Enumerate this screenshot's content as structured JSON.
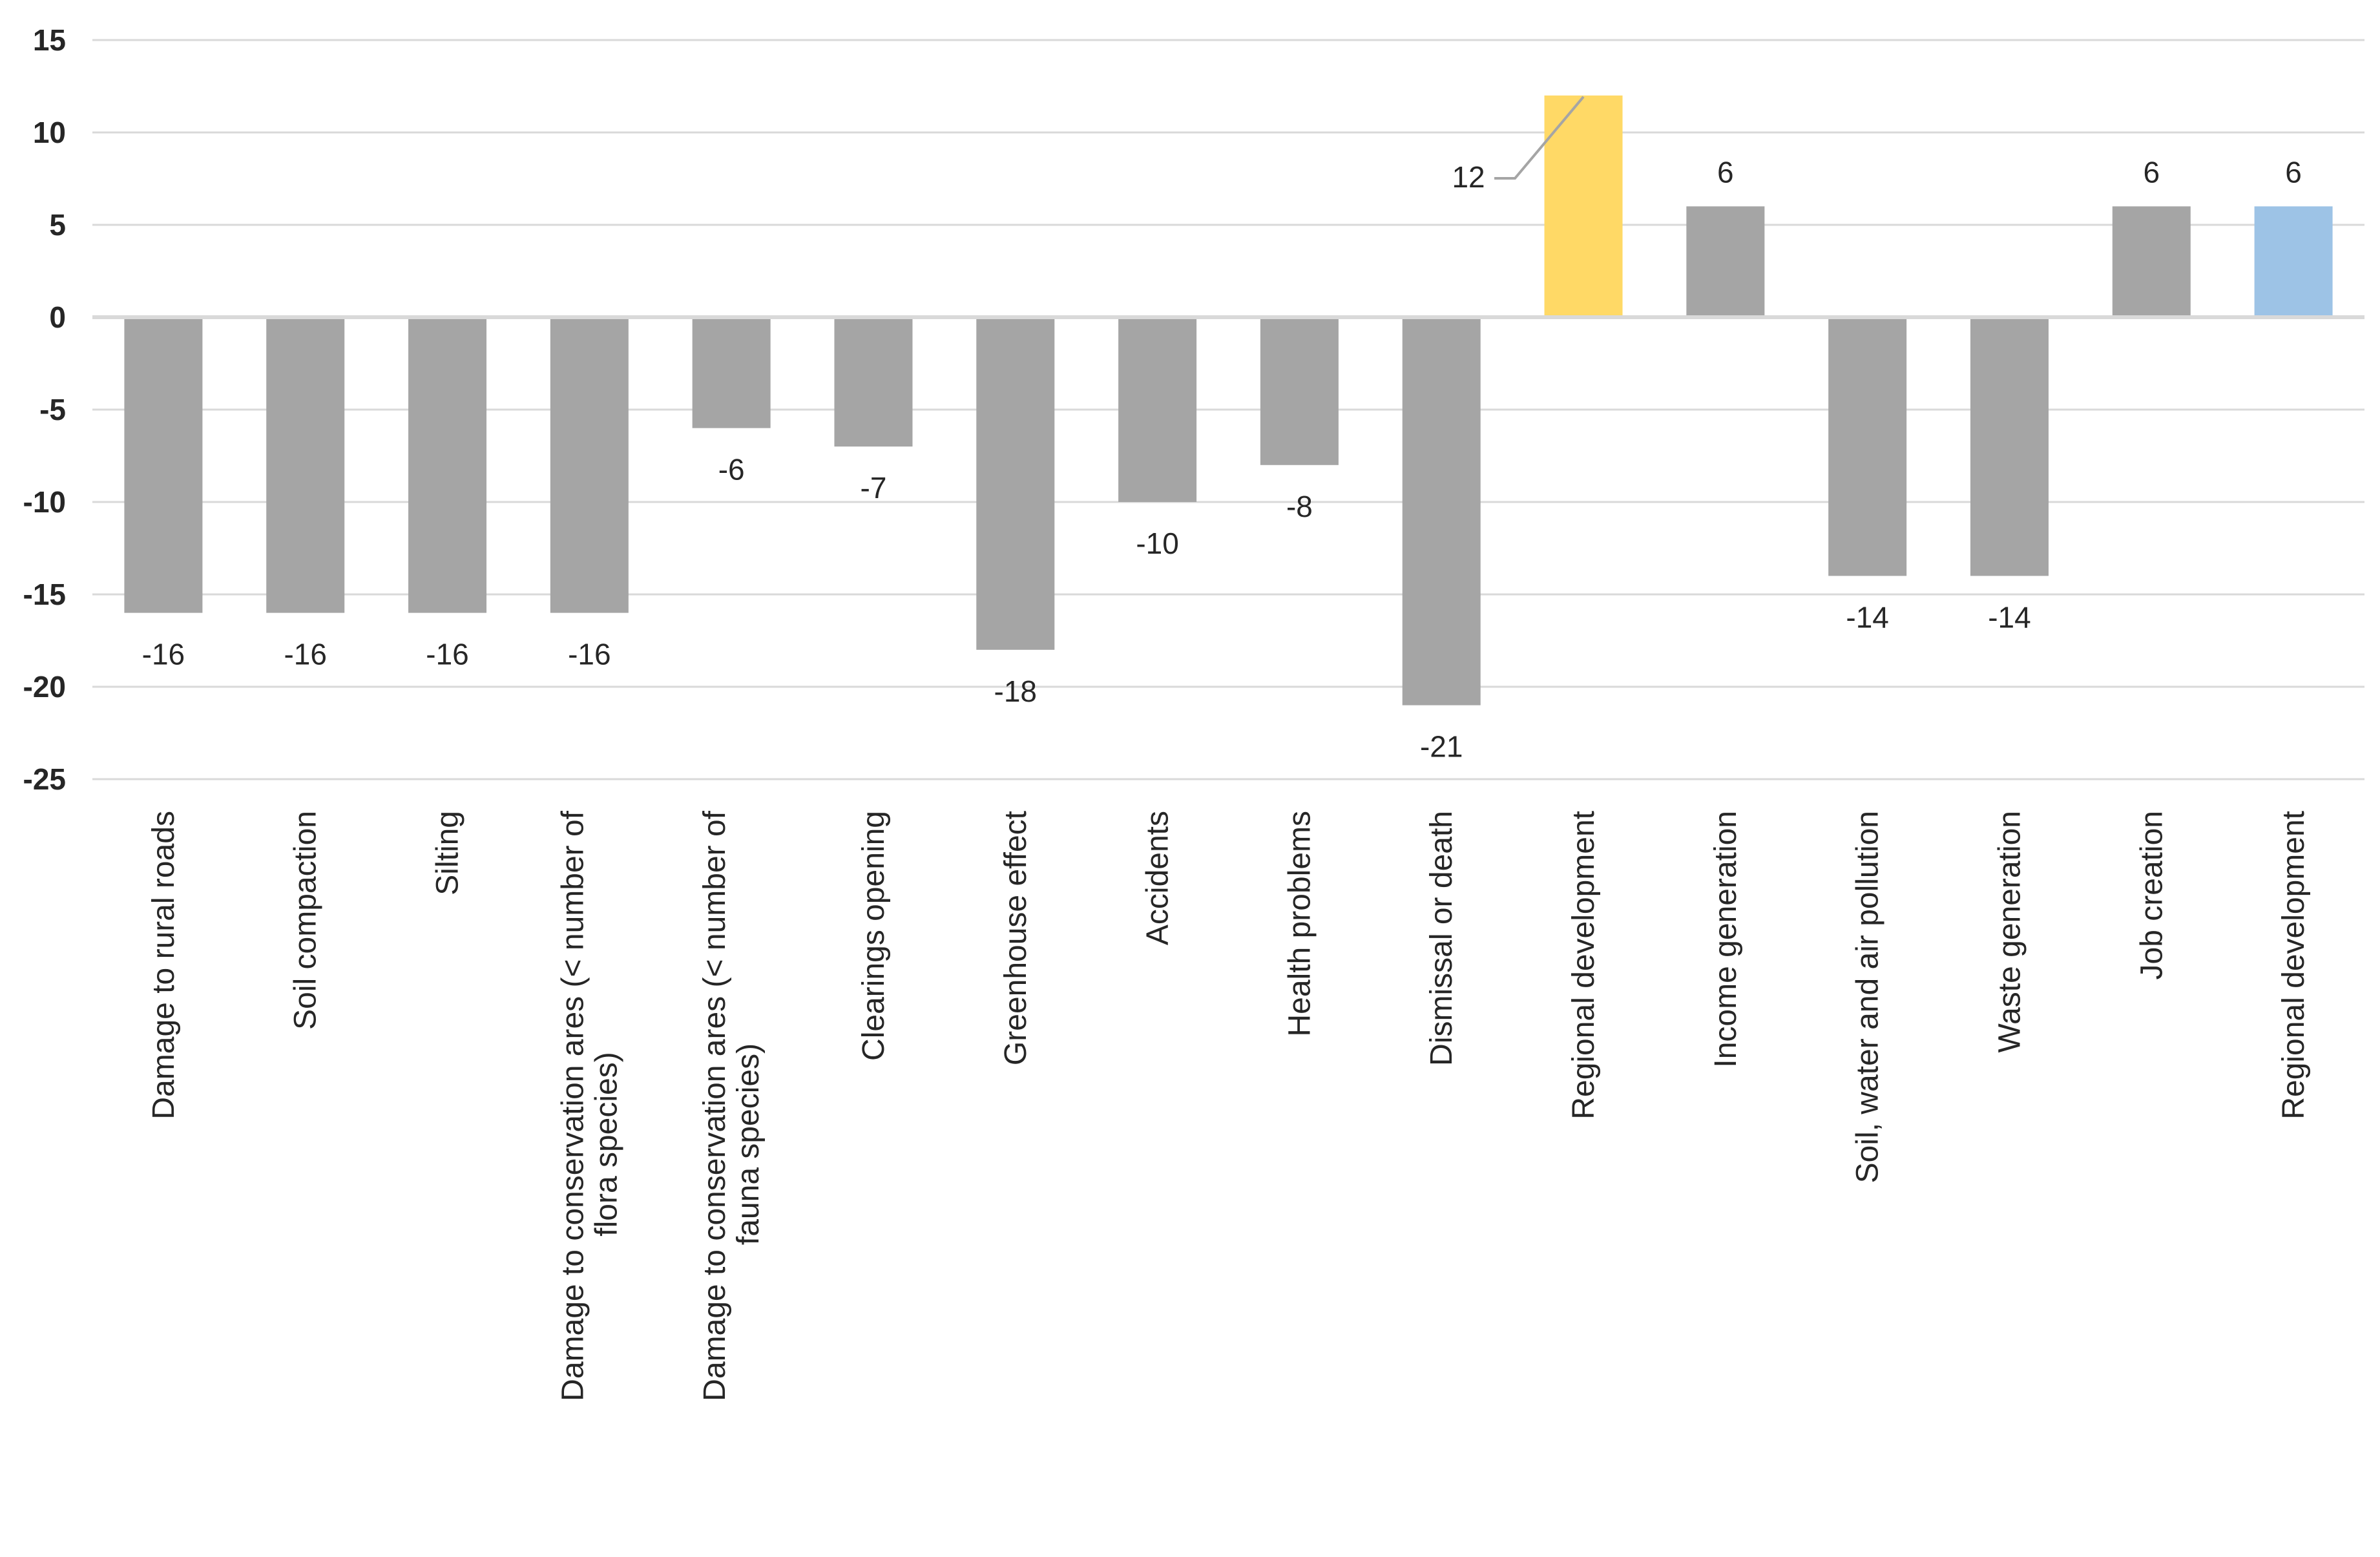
{
  "chart_data": {
    "type": "bar",
    "title": "",
    "xlabel": "",
    "ylabel": "",
    "ylim": [
      -25,
      15
    ],
    "yticks": [
      15,
      10,
      5,
      0,
      -5,
      -10,
      -15,
      -20,
      -25
    ],
    "grid": true,
    "legend": "none",
    "categories": [
      "Damage to rural roads",
      "Soil compaction",
      "Silting",
      "Damage to conservation ares (< number of flora species)",
      "Damage to conservation ares (< number of fauna species)",
      "Clearings opening",
      "Greenhouse effect",
      "Accidents",
      "Health problems",
      "Dismissal or death",
      "Regional development",
      "Income generation",
      "Soil, water and air pollution",
      "Waste generation",
      "Job creation",
      "Regional development"
    ],
    "category_lines": [
      [
        "Damage to rural roads"
      ],
      [
        "Soil compaction"
      ],
      [
        "Silting"
      ],
      [
        "Damage to conservation ares (< number of",
        "flora species)"
      ],
      [
        "Damage to conservation ares (< number of",
        "fauna species)"
      ],
      [
        "Clearings opening"
      ],
      [
        "Greenhouse effect"
      ],
      [
        "Accidents"
      ],
      [
        "Health problems"
      ],
      [
        "Dismissal or death"
      ],
      [
        "Regional development"
      ],
      [
        "Income generation"
      ],
      [
        "Soil, water and air pollution"
      ],
      [
        "Waste generation"
      ],
      [
        "Job creation"
      ],
      [
        "Regional development"
      ]
    ],
    "values": [
      -16,
      -16,
      -16,
      -16,
      -6,
      -7,
      -18,
      -10,
      -8,
      -21,
      12,
      6,
      -14,
      -14,
      6,
      6
    ],
    "data_labels": [
      "-16",
      "-16",
      "-16",
      "-16",
      "-6",
      "-7",
      "-18",
      "-10",
      "-8",
      "-21",
      "12",
      "6",
      "-14",
      "-14",
      "6",
      "6"
    ],
    "colors": [
      "#A5A5A5",
      "#A5A5A5",
      "#A5A5A5",
      "#A5A5A5",
      "#A5A5A5",
      "#A5A5A5",
      "#A5A5A5",
      "#A5A5A5",
      "#A5A5A5",
      "#A5A5A5",
      "#FFD966",
      "#A5A5A5",
      "#A5A5A5",
      "#A5A5A5",
      "#A5A5A5",
      "#9DC3E6"
    ],
    "grid_color": "#D9D9D9",
    "text_color": "#262626"
  }
}
